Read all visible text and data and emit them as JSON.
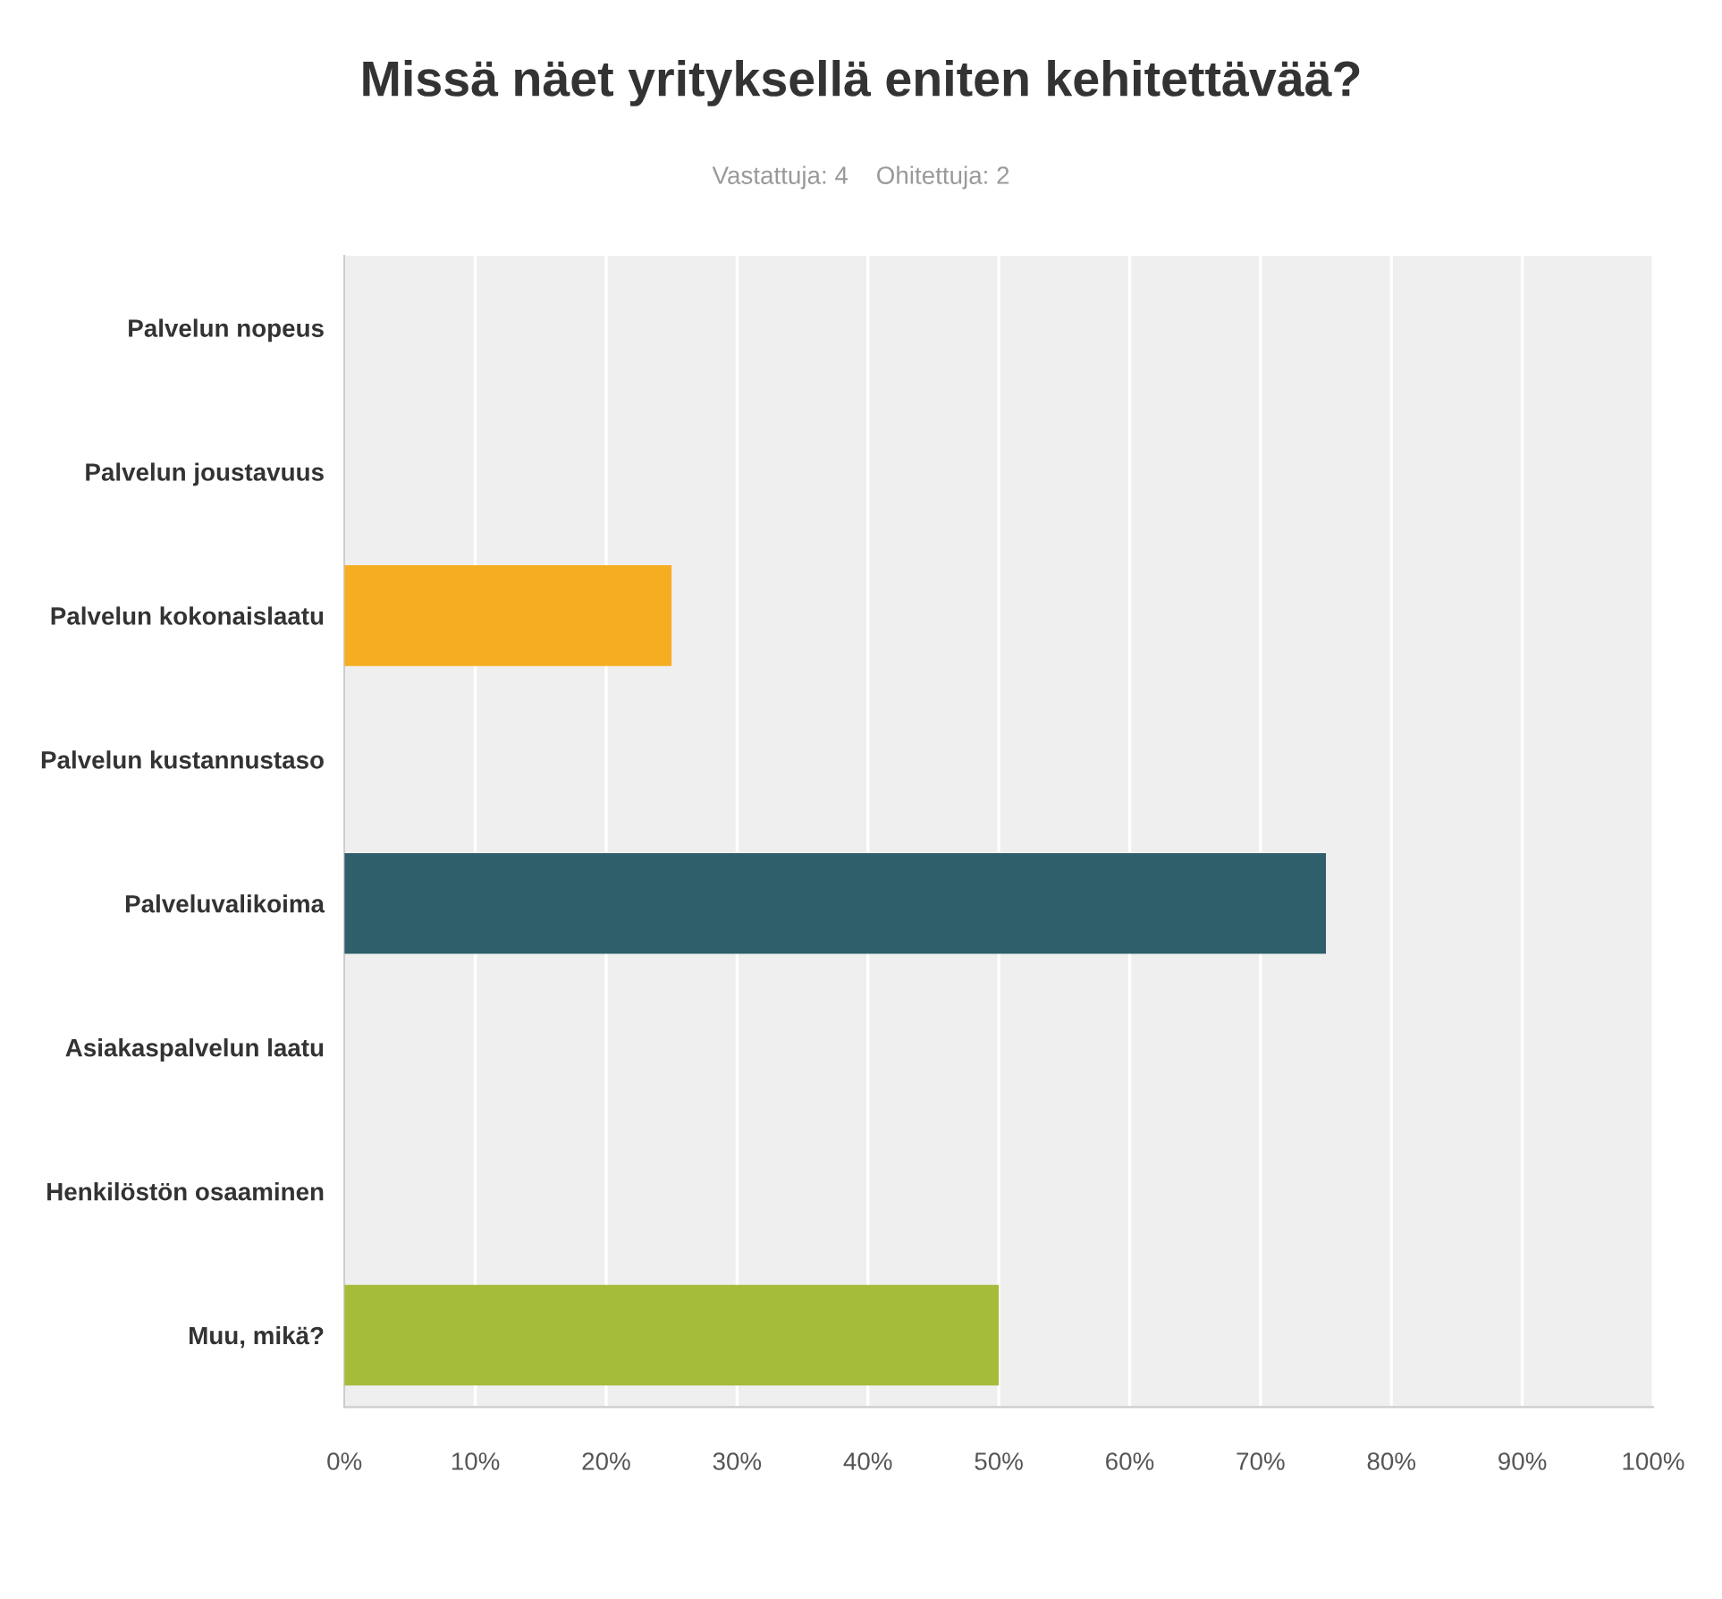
{
  "chart_data": {
    "type": "bar",
    "orientation": "horizontal",
    "title": "Missä näet yrityksellä eniten kehitettävää?",
    "subtitle": "Vastattuja: 4    Ohitettuja: 2",
    "categories": [
      "Palvelun nopeus",
      "Palvelun joustavuus",
      "Palvelun kokonaislaatu",
      "Palvelun kustannustaso",
      "Palveluvalikoima",
      "Asiakaspalvelun laatu",
      "Henkilöstön osaaminen",
      "Muu, mikä?"
    ],
    "values": [
      0,
      0,
      25,
      0,
      75,
      0,
      0,
      50
    ],
    "colors": [
      null,
      null,
      "#f5ae22",
      null,
      "#2f5f6b",
      null,
      null,
      "#a5bb3a"
    ],
    "xlim": [
      0,
      100
    ],
    "xticks": [
      {
        "value": 0,
        "label": "0%"
      },
      {
        "value": 10,
        "label": "10%"
      },
      {
        "value": 20,
        "label": "20%"
      },
      {
        "value": 30,
        "label": "30%"
      },
      {
        "value": 40,
        "label": "40%"
      },
      {
        "value": 50,
        "label": "50%"
      },
      {
        "value": 60,
        "label": "60%"
      },
      {
        "value": 70,
        "label": "70%"
      },
      {
        "value": 80,
        "label": "80%"
      },
      {
        "value": 90,
        "label": "90%"
      },
      {
        "value": 100,
        "label": "100%"
      }
    ],
    "grid": "x"
  }
}
